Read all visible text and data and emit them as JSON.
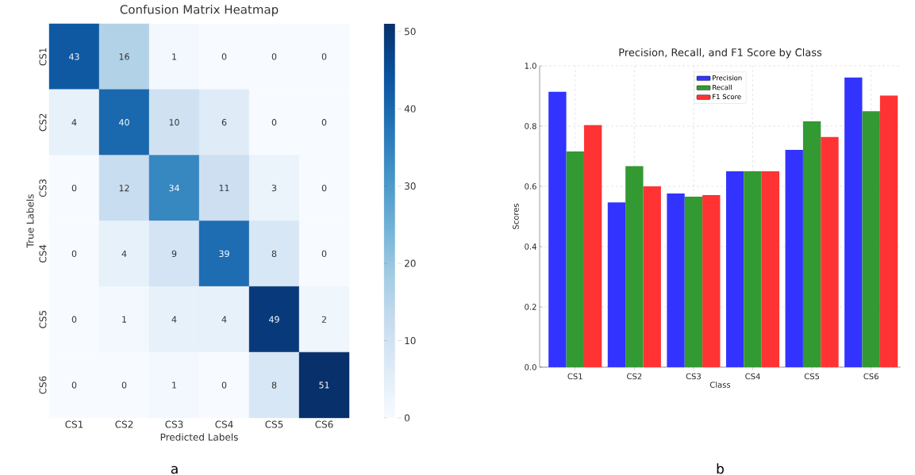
{
  "chart_data": [
    {
      "type": "heatmap",
      "title": "Confusion Matrix Heatmap",
      "xlabel": "Predicted Labels",
      "ylabel": "True Labels",
      "categories": [
        "CS1",
        "CS2",
        "CS3",
        "CS4",
        "CS5",
        "CS6"
      ],
      "y_categories": [
        "CS1",
        "CS2",
        "CS3",
        "CS4",
        "CS5",
        "CS6"
      ],
      "cells": [
        [
          43,
          16,
          1,
          0,
          0,
          0
        ],
        [
          4,
          40,
          10,
          6,
          0,
          0
        ],
        [
          0,
          12,
          34,
          11,
          3,
          0
        ],
        [
          0,
          4,
          9,
          39,
          8,
          0
        ],
        [
          0,
          1,
          4,
          4,
          49,
          2
        ],
        [
          0,
          0,
          1,
          0,
          8,
          51
        ]
      ],
      "clim": [
        0,
        51
      ],
      "cticks": [
        0,
        10,
        20,
        30,
        40,
        50
      ],
      "data_labels": true,
      "annotations": [
        "a"
      ]
    },
    {
      "type": "bar",
      "title": "Precision, Recall, and F1 Score by Class",
      "xlabel": "Class",
      "ylabel": "Scores",
      "categories": [
        "CS1",
        "CS2",
        "CS3",
        "CS4",
        "CS5",
        "CS6"
      ],
      "series": [
        {
          "name": "Precision",
          "color": "#3333ff",
          "values": [
            0.914,
            0.547,
            0.576,
            0.65,
            0.721,
            0.961
          ]
        },
        {
          "name": "Recall",
          "color": "#339933",
          "values": [
            0.716,
            0.667,
            0.566,
            0.65,
            0.816,
            0.849
          ]
        },
        {
          "name": "F1 Score",
          "color": "#ff3333",
          "values": [
            0.803,
            0.6,
            0.571,
            0.65,
            0.764,
            0.901
          ]
        }
      ],
      "ylim": [
        0,
        1.0
      ],
      "yticks": [
        {
          "value": 0,
          "label": "0.0"
        },
        0.2,
        0.4,
        0.6,
        0.8,
        {
          "value": 1.0,
          "label": "1.0"
        }
      ],
      "grid": true,
      "legend": "top",
      "annotations": [
        "b"
      ]
    }
  ]
}
